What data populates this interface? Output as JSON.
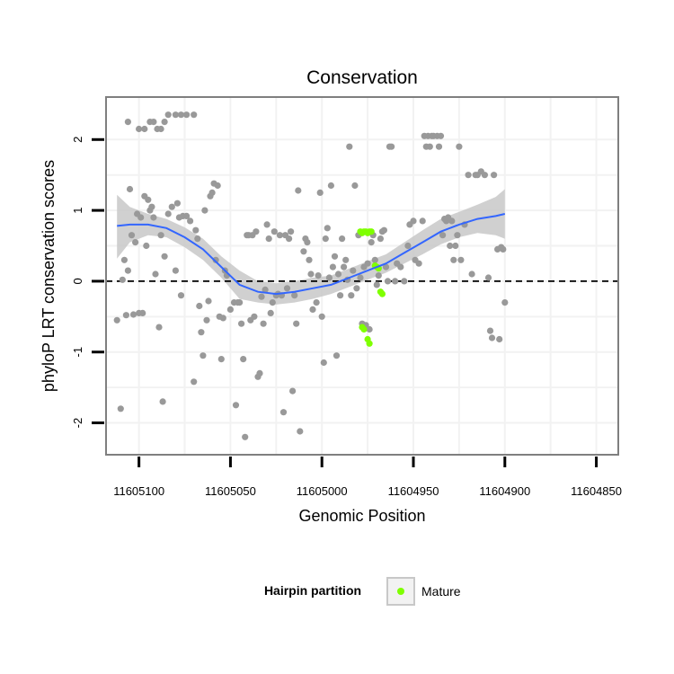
{
  "chart_data": {
    "type": "scatter",
    "title": "Conservation",
    "xlabel": "Genomic Position",
    "ylabel": "phyloP LRT conservation scores",
    "x_reversed": true,
    "xlim": [
      11605118,
      11604838
    ],
    "ylim": [
      -2.45,
      2.6
    ],
    "x_ticks": [
      11605100,
      11605050,
      11605000,
      11604950,
      11604900,
      11604850
    ],
    "y_ticks": [
      -2,
      -1,
      0,
      1,
      2
    ],
    "grid": true,
    "reference_line": {
      "y": 0,
      "style": "dashed"
    },
    "legend": {
      "title": "Hairpin partition",
      "position": "bottom",
      "entries": [
        "Mature"
      ]
    },
    "colors": {
      "other": "#999999",
      "mature": "#7fff00",
      "smooth": "#3366ff",
      "ribbon": "#c8c8c8"
    },
    "series": [
      {
        "name": "",
        "color": "#999999",
        "points": [
          [
            11605106,
            2.25
          ],
          [
            11605100,
            2.15
          ],
          [
            11605097,
            2.15
          ],
          [
            11605094,
            2.25
          ],
          [
            11605092,
            2.25
          ],
          [
            11605090,
            2.15
          ],
          [
            11605088,
            2.15
          ],
          [
            11605086,
            2.25
          ],
          [
            11605084,
            2.35
          ],
          [
            11605080,
            2.35
          ],
          [
            11605077,
            2.35
          ],
          [
            11605074,
            2.35
          ],
          [
            11605070,
            2.35
          ],
          [
            11605112,
            -0.55
          ],
          [
            11605110,
            -1.8
          ],
          [
            11605109,
            0.02
          ],
          [
            11605108,
            0.3
          ],
          [
            11605107,
            -0.48
          ],
          [
            11605106,
            0.15
          ],
          [
            11605105,
            1.3
          ],
          [
            11605104,
            0.65
          ],
          [
            11605103,
            -0.47
          ],
          [
            11605102,
            0.55
          ],
          [
            11605101,
            0.95
          ],
          [
            11605100,
            -0.45
          ],
          [
            11605099,
            0.9
          ],
          [
            11605098,
            -0.45
          ],
          [
            11605097,
            1.2
          ],
          [
            11605096,
            0.5
          ],
          [
            11605095,
            1.15
          ],
          [
            11605094,
            1.0
          ],
          [
            11605093,
            1.05
          ],
          [
            11605092,
            0.9
          ],
          [
            11605091,
            0.1
          ],
          [
            11605089,
            -0.65
          ],
          [
            11605088,
            0.65
          ],
          [
            11605087,
            -1.7
          ],
          [
            11605086,
            0.35
          ],
          [
            11605084,
            0.95
          ],
          [
            11605082,
            1.05
          ],
          [
            11605080,
            0.15
          ],
          [
            11605079,
            1.1
          ],
          [
            11605078,
            0.9
          ],
          [
            11605077,
            -0.2
          ],
          [
            11605076,
            0.92
          ],
          [
            11605074,
            0.92
          ],
          [
            11605072,
            0.85
          ],
          [
            11605070,
            -1.42
          ],
          [
            11605069,
            0.72
          ],
          [
            11605068,
            0.6
          ],
          [
            11605067,
            -0.35
          ],
          [
            11605066,
            -0.72
          ],
          [
            11605065,
            -1.05
          ],
          [
            11605064,
            1.0
          ],
          [
            11605063,
            -0.55
          ],
          [
            11605062,
            -0.28
          ],
          [
            11605061,
            1.2
          ],
          [
            11605060,
            1.25
          ],
          [
            11605059,
            1.38
          ],
          [
            11605058,
            0.3
          ],
          [
            11605057,
            1.35
          ],
          [
            11605056,
            -0.5
          ],
          [
            11605055,
            -1.1
          ],
          [
            11605054,
            -0.52
          ],
          [
            11605053,
            0.15
          ],
          [
            11605052,
            0.08
          ],
          [
            11605050,
            -0.4
          ],
          [
            11605048,
            -0.3
          ],
          [
            11605047,
            -1.75
          ],
          [
            11605046,
            -0.3
          ],
          [
            11605045,
            -0.3
          ],
          [
            11605044,
            -0.6
          ],
          [
            11605043,
            -1.1
          ],
          [
            11605042,
            -2.2
          ],
          [
            11605041,
            0.65
          ],
          [
            11605040,
            0.65
          ],
          [
            11605039,
            -0.55
          ],
          [
            11605038,
            0.65
          ],
          [
            11605037,
            -0.5
          ],
          [
            11605036,
            0.7
          ],
          [
            11605035,
            -1.35
          ],
          [
            11605034,
            -1.3
          ],
          [
            11605033,
            -0.22
          ],
          [
            11605032,
            -0.6
          ],
          [
            11605031,
            -0.12
          ],
          [
            11605030,
            0.8
          ],
          [
            11605029,
            0.6
          ],
          [
            11605028,
            -0.45
          ],
          [
            11605027,
            -0.3
          ],
          [
            11605026,
            0.7
          ],
          [
            11605025,
            -0.2
          ],
          [
            11605024,
            -0.18
          ],
          [
            11605023,
            0.65
          ],
          [
            11605022,
            -0.2
          ],
          [
            11605021,
            -1.85
          ],
          [
            11605020,
            0.65
          ],
          [
            11605019,
            -0.1
          ],
          [
            11605018,
            0.6
          ],
          [
            11605017,
            0.7
          ],
          [
            11605016,
            -1.55
          ],
          [
            11605015,
            -0.2
          ],
          [
            11605014,
            -0.6
          ],
          [
            11605013,
            1.28
          ],
          [
            11605012,
            -2.12
          ],
          [
            11605010,
            0.42
          ],
          [
            11605009,
            0.6
          ],
          [
            11605008,
            0.55
          ],
          [
            11605007,
            0.3
          ],
          [
            11605006,
            0.1
          ],
          [
            11605005,
            -0.4
          ],
          [
            11605003,
            -0.3
          ],
          [
            11605002,
            0.08
          ],
          [
            11605001,
            1.25
          ],
          [
            11605000,
            -0.5
          ],
          [
            11604999,
            -1.15
          ],
          [
            11604998,
            0.6
          ],
          [
            11604997,
            0.75
          ],
          [
            11604996,
            0.05
          ],
          [
            11604995,
            1.35
          ],
          [
            11604994,
            0.2
          ],
          [
            11604993,
            0.35
          ],
          [
            11604992,
            -1.05
          ],
          [
            11604991,
            0.1
          ],
          [
            11604990,
            -0.2
          ],
          [
            11604989,
            0.6
          ],
          [
            11604988,
            0.2
          ],
          [
            11604987,
            0.3
          ],
          [
            11604986,
            0.02
          ],
          [
            11604985,
            1.9
          ],
          [
            11604984,
            -0.2
          ],
          [
            11604983,
            0.15
          ],
          [
            11604982,
            1.35
          ],
          [
            11604981,
            -0.1
          ],
          [
            11604980,
            0.65
          ],
          [
            11604979,
            0.05
          ],
          [
            11604978,
            -0.6
          ],
          [
            11604977,
            0.2
          ],
          [
            11604976,
            -0.62
          ],
          [
            11604975,
            0.25
          ],
          [
            11604974,
            -0.68
          ],
          [
            11604973,
            0.55
          ],
          [
            11604972,
            0.65
          ],
          [
            11604971,
            0.3
          ],
          [
            11604970,
            -0.05
          ],
          [
            11604969,
            0.08
          ],
          [
            11604968,
            0.6
          ],
          [
            11604967,
            0.7
          ],
          [
            11604966,
            0.72
          ],
          [
            11604965,
            0.2
          ],
          [
            11604964,
            0.0
          ],
          [
            11604963,
            1.9
          ],
          [
            11604962,
            1.9
          ],
          [
            11604960,
            0.0
          ],
          [
            11604959,
            0.25
          ],
          [
            11604957,
            0.2
          ],
          [
            11604955,
            0.0
          ],
          [
            11604953,
            0.5
          ],
          [
            11604952,
            0.8
          ],
          [
            11604950,
            0.85
          ],
          [
            11604949,
            0.3
          ],
          [
            11604947,
            0.25
          ],
          [
            11604945,
            0.85
          ],
          [
            11604944,
            2.05
          ],
          [
            11604943,
            1.9
          ],
          [
            11604942,
            2.05
          ],
          [
            11604941,
            1.9
          ],
          [
            11604940,
            2.05
          ],
          [
            11604939,
            2.05
          ],
          [
            11604937,
            2.05
          ],
          [
            11604936,
            1.9
          ],
          [
            11604935,
            2.05
          ],
          [
            11604934,
            0.65
          ],
          [
            11604933,
            0.88
          ],
          [
            11604932,
            0.85
          ],
          [
            11604931,
            0.9
          ],
          [
            11604930,
            0.5
          ],
          [
            11604929,
            0.85
          ],
          [
            11604928,
            0.3
          ],
          [
            11604927,
            0.5
          ],
          [
            11604926,
            0.65
          ],
          [
            11604925,
            1.9
          ],
          [
            11604924,
            0.3
          ],
          [
            11604922,
            0.8
          ],
          [
            11604920,
            1.5
          ],
          [
            11604918,
            0.1
          ],
          [
            11604916,
            1.5
          ],
          [
            11604915,
            1.5
          ],
          [
            11604913,
            1.55
          ],
          [
            11604911,
            1.5
          ],
          [
            11604909,
            0.05
          ],
          [
            11604908,
            -0.7
          ],
          [
            11604907,
            -0.8
          ],
          [
            11604906,
            1.5
          ],
          [
            11604904,
            0.45
          ],
          [
            11604903,
            -0.82
          ],
          [
            11604902,
            0.48
          ],
          [
            11604901,
            0.45
          ],
          [
            11604900,
            -0.3
          ]
        ]
      },
      {
        "name": "Mature",
        "color": "#7fff00",
        "points": [
          [
            11604979,
            0.7
          ],
          [
            11604978,
            0.68
          ],
          [
            11604977,
            0.7
          ],
          [
            11604976,
            0.7
          ],
          [
            11604975,
            0.68
          ],
          [
            11604974,
            0.7
          ],
          [
            11604973,
            0.7
          ],
          [
            11604971,
            0.22
          ],
          [
            11604970,
            0.2
          ],
          [
            11604969,
            0.18
          ],
          [
            11604968,
            -0.15
          ],
          [
            11604967,
            -0.18
          ],
          [
            11604978,
            -0.65
          ],
          [
            11604977,
            -0.68
          ],
          [
            11604975,
            -0.82
          ],
          [
            11604974,
            -0.88
          ]
        ]
      }
    ],
    "smooth": {
      "x": [
        11605112,
        11605105,
        11605095,
        11605085,
        11605075,
        11605065,
        11605055,
        11605045,
        11605035,
        11605025,
        11605015,
        11605005,
        11604995,
        11604985,
        11604975,
        11604965,
        11604955,
        11604945,
        11604935,
        11604925,
        11604915,
        11604905,
        11604900
      ],
      "y": [
        0.78,
        0.8,
        0.8,
        0.75,
        0.62,
        0.45,
        0.2,
        -0.05,
        -0.15,
        -0.18,
        -0.15,
        -0.1,
        -0.05,
        0.05,
        0.15,
        0.25,
        0.4,
        0.55,
        0.7,
        0.8,
        0.88,
        0.92,
        0.95
      ],
      "lower": [
        0.32,
        0.55,
        0.65,
        0.62,
        0.48,
        0.3,
        0.05,
        -0.25,
        -0.3,
        -0.33,
        -0.3,
        -0.25,
        -0.18,
        -0.08,
        0.02,
        0.12,
        0.25,
        0.38,
        0.52,
        0.62,
        0.68,
        0.65,
        0.6
      ],
      "upper": [
        1.22,
        1.05,
        0.95,
        0.88,
        0.76,
        0.6,
        0.35,
        0.15,
        0.0,
        -0.03,
        0.0,
        0.05,
        0.08,
        0.18,
        0.28,
        0.38,
        0.55,
        0.72,
        0.88,
        0.98,
        1.08,
        1.19,
        1.3
      ]
    }
  }
}
